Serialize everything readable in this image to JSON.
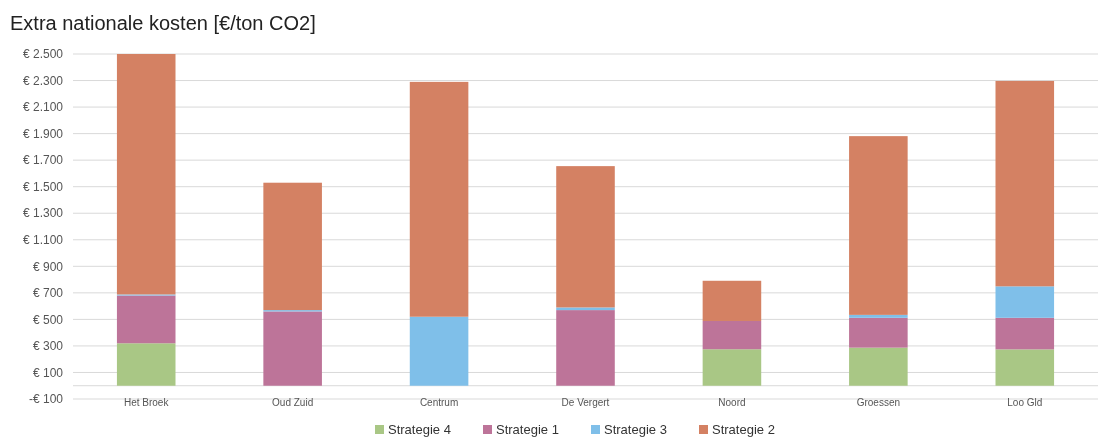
{
  "chart_data": {
    "type": "bar",
    "title": "Extra nationale kosten [€/ton CO2]",
    "stacked": true,
    "categories": [
      "Het Broek",
      "Oud Zuid",
      "Centrum",
      "De Vergert",
      "Noord",
      "Groessen",
      "Loo Gld"
    ],
    "series": [
      {
        "name": "Strategie 4",
        "color": "#a9c785",
        "values": [
          320,
          null,
          null,
          null,
          275,
          287,
          274
        ]
      },
      {
        "name": "Strategie 1",
        "color": "#bd7499",
        "values": [
          360,
          560,
          null,
          570,
          213,
          225,
          238
        ]
      },
      {
        "name": "Strategie 3",
        "color": "#7fbfe9",
        "values": [
          8,
          10,
          520,
          20,
          null,
          22,
          237
        ]
      },
      {
        "name": "Strategie 2",
        "color": "#d48163",
        "values": [
          1812,
          960,
          1770,
          1065,
          303,
          1347,
          1548
        ]
      }
    ],
    "ylim": [
      -100,
      2500
    ],
    "yticks": [
      {
        "value": -100,
        "label": "-€ 100"
      },
      {
        "value": 100,
        "label": "€ 100"
      },
      {
        "value": 300,
        "label": "€ 300"
      },
      {
        "value": 500,
        "label": "€ 500"
      },
      {
        "value": 700,
        "label": "€ 700"
      },
      {
        "value": 900,
        "label": "€ 900"
      },
      {
        "value": 1100,
        "label": "€ 1.100"
      },
      {
        "value": 1300,
        "label": "€ 1.300"
      },
      {
        "value": 1500,
        "label": "€ 1.500"
      },
      {
        "value": 1700,
        "label": "€ 1.700"
      },
      {
        "value": 1900,
        "label": "€ 1.900"
      },
      {
        "value": 2100,
        "label": "€ 2.100"
      },
      {
        "value": 2300,
        "label": "€ 2.300"
      },
      {
        "value": 2500,
        "label": "€ 2.500"
      }
    ],
    "grid": "y",
    "legend": "bottom"
  }
}
